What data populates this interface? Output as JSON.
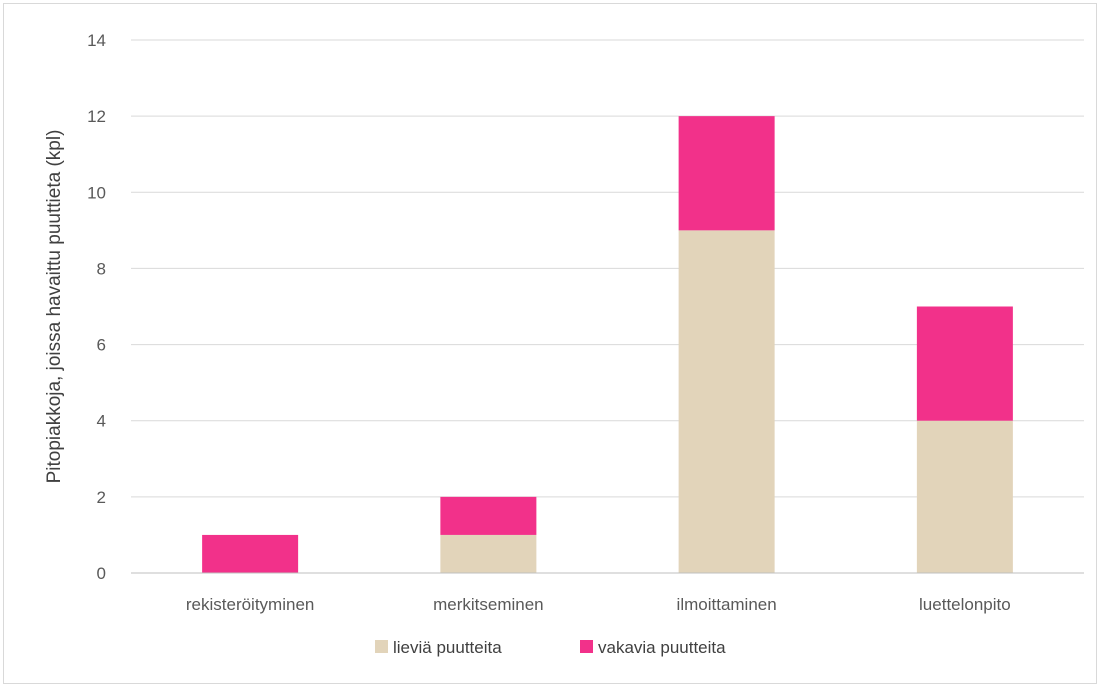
{
  "chart_data": {
    "type": "bar",
    "stacked": true,
    "title": "",
    "xlabel": "",
    "ylabel": "Pitopiakkoja, joissa havaittu puuttieta (kpl)",
    "categories": [
      "rekisteröityminen",
      "merkitseminen",
      "ilmoittaminen",
      "luettelonpito"
    ],
    "series": [
      {
        "name": "lieviä puutteita",
        "color": "#e2d4ba",
        "values": [
          0,
          1,
          9,
          4
        ]
      },
      {
        "name": "vakavia puutteita",
        "color": "#f2318a",
        "values": [
          1,
          1,
          3,
          3
        ]
      }
    ],
    "ylim": [
      0,
      14
    ],
    "yticks": [
      0,
      2,
      4,
      6,
      8,
      10,
      12,
      14
    ],
    "grid": true,
    "legend_position": "bottom"
  }
}
